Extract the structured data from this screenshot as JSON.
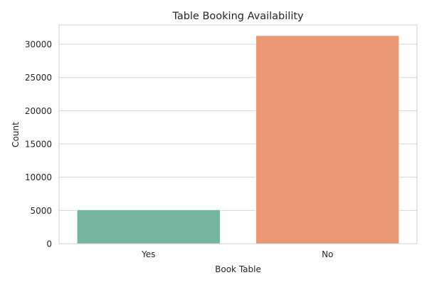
{
  "chart_data": {
    "type": "bar",
    "title": "Table Booking Availability",
    "xlabel": "Book Table",
    "ylabel": "Count",
    "categories": [
      "Yes",
      "No"
    ],
    "values": [
      5100,
      31300
    ],
    "colors": [
      "#76b6a0",
      "#ea9873"
    ],
    "ylim": [
      0,
      32900
    ],
    "yticks": [
      0,
      5000,
      10000,
      15000,
      20000,
      25000,
      30000
    ],
    "grid": true,
    "legend": "none"
  }
}
